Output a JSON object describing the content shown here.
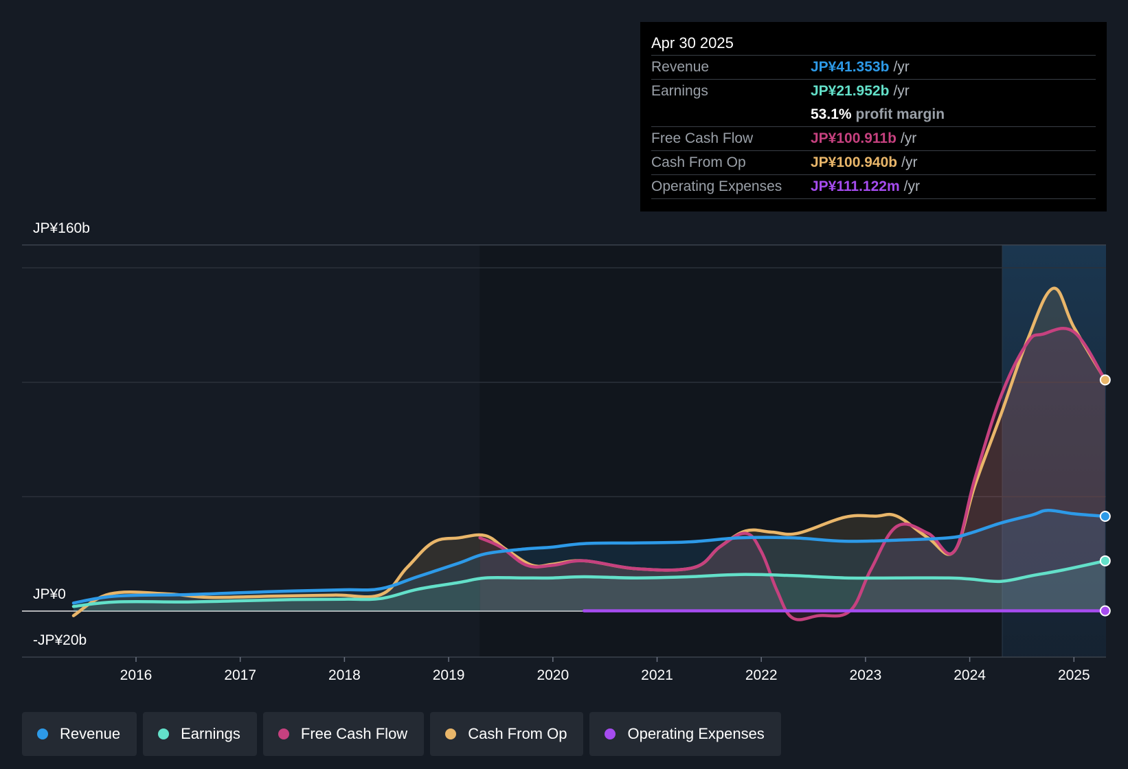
{
  "tooltip": {
    "date": "Apr 30 2025",
    "revenue": {
      "label": "Revenue",
      "value": "JP¥41.353b",
      "unit": "/yr"
    },
    "earnings": {
      "label": "Earnings",
      "value": "JP¥21.952b",
      "unit": "/yr"
    },
    "margin": {
      "value": "53.1%",
      "text": "profit margin"
    },
    "fcf": {
      "label": "Free Cash Flow",
      "value": "JP¥100.911b",
      "unit": "/yr"
    },
    "cfo": {
      "label": "Cash From Op",
      "value": "JP¥100.940b",
      "unit": "/yr"
    },
    "opex": {
      "label": "Operating Expenses",
      "value": "JP¥111.122m",
      "unit": "/yr"
    }
  },
  "legend": [
    {
      "label": "Revenue",
      "color": "#2d9ae8"
    },
    {
      "label": "Earnings",
      "color": "#63e0c9"
    },
    {
      "label": "Free Cash Flow",
      "color": "#c6417f"
    },
    {
      "label": "Cash From Op",
      "color": "#e9b66a"
    },
    {
      "label": "Operating Expenses",
      "color": "#a64cf0"
    }
  ],
  "chart_data": {
    "type": "line",
    "yaxis_labels": [
      "JP¥160b",
      "JP¥0",
      "-JP¥20b"
    ],
    "ylim": [
      -20,
      160
    ],
    "x_ticks": [
      "2016",
      "2017",
      "2018",
      "2019",
      "2020",
      "2021",
      "2022",
      "2023",
      "2024",
      "2025"
    ],
    "series": [
      {
        "name": "Revenue",
        "color": "#2d9ae8",
        "points": [
          [
            2015.4,
            3.5
          ],
          [
            2015.8,
            6.5
          ],
          [
            2016.5,
            7.2
          ],
          [
            2017,
            8
          ],
          [
            2017.5,
            8.8
          ],
          [
            2018,
            9.3
          ],
          [
            2018.35,
            9.8
          ],
          [
            2018.7,
            15
          ],
          [
            2019.1,
            21
          ],
          [
            2019.35,
            25
          ],
          [
            2019.7,
            27
          ],
          [
            2020,
            28
          ],
          [
            2020.3,
            29.5
          ],
          [
            2020.8,
            29.8
          ],
          [
            2021.3,
            30.2
          ],
          [
            2021.8,
            32
          ],
          [
            2022.3,
            32
          ],
          [
            2022.8,
            30.5
          ],
          [
            2023.3,
            31
          ],
          [
            2023.8,
            32
          ],
          [
            2024,
            34
          ],
          [
            2024.3,
            38.5
          ],
          [
            2024.6,
            42
          ],
          [
            2024.75,
            44
          ],
          [
            2025.0,
            42.5
          ],
          [
            2025.3,
            41.4
          ]
        ]
      },
      {
        "name": "Earnings",
        "color": "#63e0c9",
        "points": [
          [
            2015.4,
            2
          ],
          [
            2015.8,
            4
          ],
          [
            2016.5,
            4
          ],
          [
            2017,
            4.5
          ],
          [
            2017.5,
            5
          ],
          [
            2018,
            5.2
          ],
          [
            2018.35,
            5.5
          ],
          [
            2018.7,
            9.5
          ],
          [
            2019.1,
            12.5
          ],
          [
            2019.35,
            14.5
          ],
          [
            2019.7,
            14.5
          ],
          [
            2020,
            14.5
          ],
          [
            2020.3,
            15
          ],
          [
            2020.8,
            14.5
          ],
          [
            2021.3,
            15
          ],
          [
            2021.8,
            16
          ],
          [
            2022.3,
            15.5
          ],
          [
            2022.8,
            14.5
          ],
          [
            2023.3,
            14.5
          ],
          [
            2023.8,
            14.5
          ],
          [
            2024,
            14
          ],
          [
            2024.3,
            13
          ],
          [
            2024.6,
            15.5
          ],
          [
            2024.9,
            18
          ],
          [
            2025.3,
            21.95
          ]
        ]
      },
      {
        "name": "Free Cash Flow",
        "color": "#c6417f",
        "points": [
          [
            2019.3,
            32
          ],
          [
            2019.5,
            28
          ],
          [
            2019.75,
            20
          ],
          [
            2020,
            20
          ],
          [
            2020.3,
            22
          ],
          [
            2020.8,
            18.5
          ],
          [
            2021.35,
            19
          ],
          [
            2021.6,
            28
          ],
          [
            2021.85,
            34
          ],
          [
            2022,
            26
          ],
          [
            2022.15,
            9
          ],
          [
            2022.3,
            -3
          ],
          [
            2022.55,
            -2
          ],
          [
            2022.85,
            0
          ],
          [
            2023.05,
            18
          ],
          [
            2023.3,
            37
          ],
          [
            2023.6,
            34
          ],
          [
            2023.85,
            26
          ],
          [
            2024.05,
            58
          ],
          [
            2024.3,
            94
          ],
          [
            2024.55,
            117
          ],
          [
            2024.7,
            121
          ],
          [
            2025.0,
            122
          ],
          [
            2025.3,
            100.9
          ]
        ]
      },
      {
        "name": "Cash From Op",
        "color": "#e9b66a",
        "points": [
          [
            2015.4,
            -2
          ],
          [
            2015.75,
            7.5
          ],
          [
            2016.3,
            7.5
          ],
          [
            2016.7,
            6
          ],
          [
            2017.3,
            6.5
          ],
          [
            2017.9,
            7
          ],
          [
            2018.35,
            7.2
          ],
          [
            2018.6,
            19
          ],
          [
            2018.85,
            30
          ],
          [
            2019.1,
            32
          ],
          [
            2019.35,
            33
          ],
          [
            2019.55,
            27
          ],
          [
            2019.8,
            20
          ],
          [
            2020,
            20.5
          ],
          [
            2020.3,
            22
          ],
          [
            2020.8,
            18.5
          ],
          [
            2021.35,
            19
          ],
          [
            2021.6,
            28
          ],
          [
            2021.85,
            35
          ],
          [
            2022.1,
            34.5
          ],
          [
            2022.35,
            34
          ],
          [
            2022.8,
            41
          ],
          [
            2023.1,
            41.5
          ],
          [
            2023.3,
            41.5
          ],
          [
            2023.6,
            32
          ],
          [
            2023.85,
            26
          ],
          [
            2024.05,
            55
          ],
          [
            2024.3,
            86
          ],
          [
            2024.55,
            118
          ],
          [
            2024.8,
            141
          ],
          [
            2025.0,
            124
          ],
          [
            2025.3,
            101
          ]
        ]
      },
      {
        "name": "Operating Expenses",
        "color": "#a64cf0",
        "points": [
          [
            2020.3,
            0.11
          ],
          [
            2025.3,
            0.11
          ]
        ]
      }
    ]
  }
}
